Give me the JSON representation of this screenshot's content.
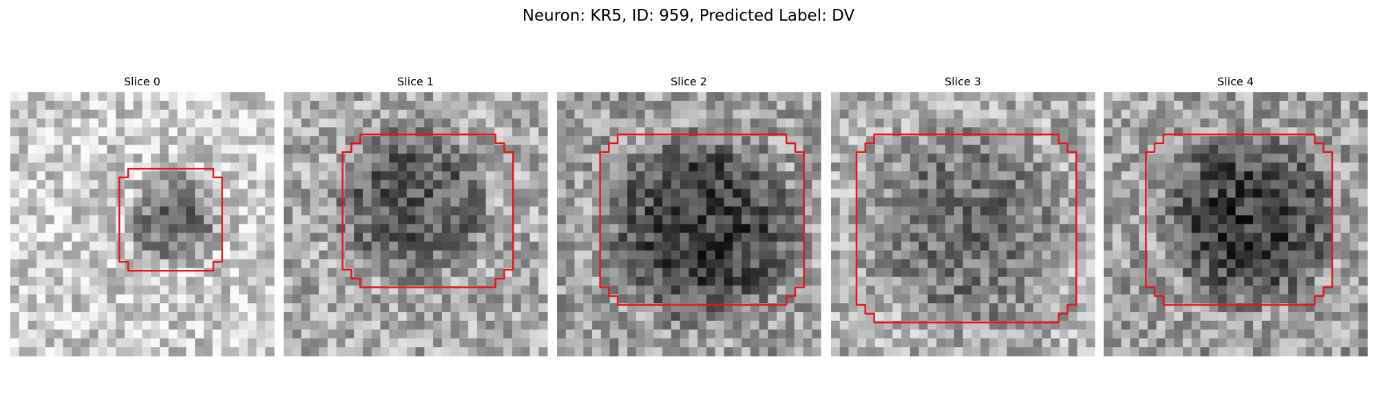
{
  "title": "Neuron: KR5, ID: 959, Predicted Label: DV",
  "panels": [
    {
      "title": "Slice 0"
    },
    {
      "title": "Slice 1"
    },
    {
      "title": "Slice 2"
    },
    {
      "title": "Slice 3"
    },
    {
      "title": "Slice 4"
    }
  ]
}
